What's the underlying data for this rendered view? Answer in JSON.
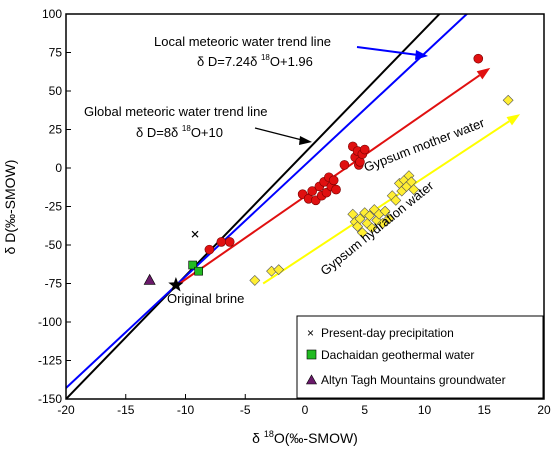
{
  "chart_data": {
    "type": "scatter",
    "xlabel_prefix": "δ ",
    "xlabel_sup": "18",
    "xlabel_main": "O(‰-SMOW)",
    "ylabel": "δ D(‰-SMOW)",
    "xlim": [
      -20,
      20
    ],
    "ylim": [
      -150,
      100
    ],
    "xticks": [
      -20,
      -15,
      -10,
      -5,
      0,
      5,
      10,
      15,
      20
    ],
    "yticks": [
      -150,
      -125,
      -100,
      -75,
      -50,
      -25,
      0,
      25,
      50,
      75,
      100
    ],
    "lines": [
      {
        "name": "Global meteoric water trend line",
        "equation_a": "δ D=8δ ",
        "equation_sup": "18",
        "equation_b": "O+10",
        "slope": 8,
        "intercept": 10,
        "color": "#000000"
      },
      {
        "name": "Local meteoric water trend line",
        "equation_a": "δ D=7.24δ ",
        "equation_sup": "18",
        "equation_b": "O+1.96",
        "slope": 7.24,
        "intercept": 1.96,
        "color": "#0000ff"
      }
    ],
    "trend_arrows": [
      {
        "label": "Gypsum mother water",
        "color": "#e01010",
        "from": [
          -10.5,
          -75
        ],
        "to": [
          15.5,
          65
        ]
      },
      {
        "label": "Gypsum hydration water",
        "color": "#ffff00",
        "from": [
          -3.5,
          -75
        ],
        "to": [
          18,
          35
        ]
      }
    ],
    "annotations": {
      "original_brine": "Original brine",
      "original_brine_point": [
        -10.8,
        -76
      ]
    },
    "series": [
      {
        "name": "Present-day precipitation",
        "marker": "x",
        "color": "#000000",
        "points": [
          [
            -9.2,
            -43
          ]
        ]
      },
      {
        "name": "Dachaidan geothermal water",
        "marker": "square",
        "color": "#22bb22",
        "points": [
          [
            -9.4,
            -63
          ],
          [
            -8.9,
            -67
          ]
        ]
      },
      {
        "name": "Altyn Tagh Mountains groundwater",
        "marker": "triangle",
        "color": "#6a1a6a",
        "points": [
          [
            -13,
            -73
          ]
        ]
      },
      {
        "name": "Gypsum mother water",
        "marker": "circle",
        "color": "#e01010",
        "points": [
          [
            -8.0,
            -53
          ],
          [
            -7.0,
            -48
          ],
          [
            -6.3,
            -48
          ],
          [
            -0.2,
            -17
          ],
          [
            0.3,
            -20
          ],
          [
            0.6,
            -15
          ],
          [
            0.9,
            -21
          ],
          [
            1.2,
            -12
          ],
          [
            1.4,
            -18
          ],
          [
            1.6,
            -9
          ],
          [
            1.8,
            -16
          ],
          [
            2.0,
            -6
          ],
          [
            2.2,
            -12
          ],
          [
            2.4,
            -8
          ],
          [
            2.6,
            -14
          ],
          [
            3.3,
            2
          ],
          [
            4.0,
            14
          ],
          [
            4.2,
            7
          ],
          [
            4.4,
            11
          ],
          [
            4.5,
            2
          ],
          [
            4.6,
            4
          ],
          [
            4.8,
            9
          ],
          [
            5.0,
            12
          ],
          [
            14.5,
            71
          ]
        ]
      },
      {
        "name": "Gypsum hydration water",
        "marker": "diamond",
        "color": "#ffee33",
        "points": [
          [
            -4.2,
            -73
          ],
          [
            -2.8,
            -67
          ],
          [
            -2.2,
            -66
          ],
          [
            4.0,
            -30
          ],
          [
            4.2,
            -35
          ],
          [
            4.4,
            -38
          ],
          [
            4.6,
            -33
          ],
          [
            4.8,
            -42
          ],
          [
            5.0,
            -29
          ],
          [
            5.2,
            -36
          ],
          [
            5.4,
            -31
          ],
          [
            5.6,
            -39
          ],
          [
            5.8,
            -27
          ],
          [
            6.0,
            -34
          ],
          [
            6.2,
            -30
          ],
          [
            6.5,
            -36
          ],
          [
            6.7,
            -28
          ],
          [
            7.0,
            -33
          ],
          [
            7.3,
            -18
          ],
          [
            7.6,
            -21
          ],
          [
            7.9,
            -10
          ],
          [
            8.1,
            -15
          ],
          [
            8.3,
            -8
          ],
          [
            8.5,
            -12
          ],
          [
            8.7,
            -5
          ],
          [
            8.9,
            -9
          ],
          [
            9.1,
            -14
          ],
          [
            17.0,
            44
          ]
        ]
      }
    ],
    "legend": {
      "placement": "bottom-right",
      "entries": [
        {
          "label": "Present-day precipitation",
          "marker": "x"
        },
        {
          "label": "Dachaidan geothermal water",
          "marker": "square"
        },
        {
          "label": "Altyn Tagh Mountains groundwater",
          "marker": "triangle"
        }
      ]
    }
  }
}
